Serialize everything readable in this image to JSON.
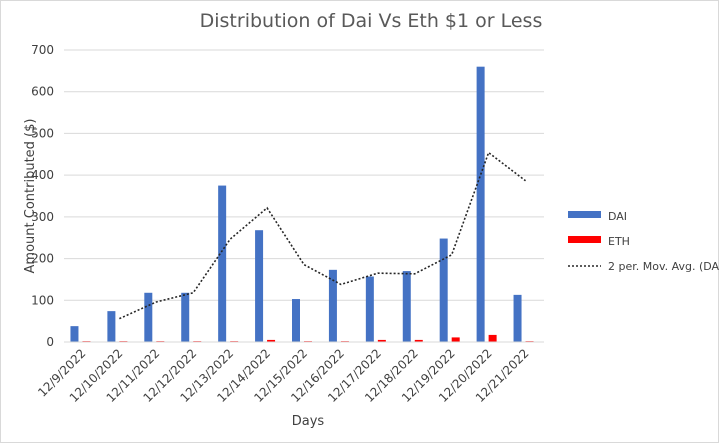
{
  "chart_data": {
    "type": "bar",
    "title": "Distribution of Dai Vs Eth $1 or Less",
    "xlabel": "Days",
    "ylabel": "Amount Contributed ($)",
    "ylim": [
      0,
      700
    ],
    "yticks": [
      0,
      100,
      200,
      300,
      400,
      500,
      600,
      700
    ],
    "grid": true,
    "legend_position": "right",
    "categories": [
      "12/9/2022",
      "12/10/2022",
      "12/11/2022",
      "12/12/2022",
      "12/13/2022",
      "12/14/2022",
      "12/15/2022",
      "12/16/2022",
      "12/17/2022",
      "12/18/2022",
      "12/19/2022",
      "12/20/2022",
      "12/21/2022"
    ],
    "series": [
      {
        "name": "DAI",
        "type": "bar",
        "color": "#4472c4",
        "values": [
          38,
          74,
          118,
          118,
          375,
          268,
          103,
          173,
          157,
          170,
          248,
          660,
          113
        ]
      },
      {
        "name": "ETH",
        "type": "bar",
        "color": "#ff0000",
        "values": [
          2,
          2,
          2,
          2,
          2,
          5,
          2,
          2,
          5,
          5,
          11,
          17,
          2
        ]
      },
      {
        "name": "2 per. Mov. Avg. (DA",
        "type": "line",
        "style": "dotted",
        "color": "#262626",
        "values": [
          null,
          56,
          96,
          118,
          246.5,
          321.5,
          185.5,
          138,
          165,
          163.5,
          209,
          454,
          386.5
        ]
      }
    ]
  }
}
